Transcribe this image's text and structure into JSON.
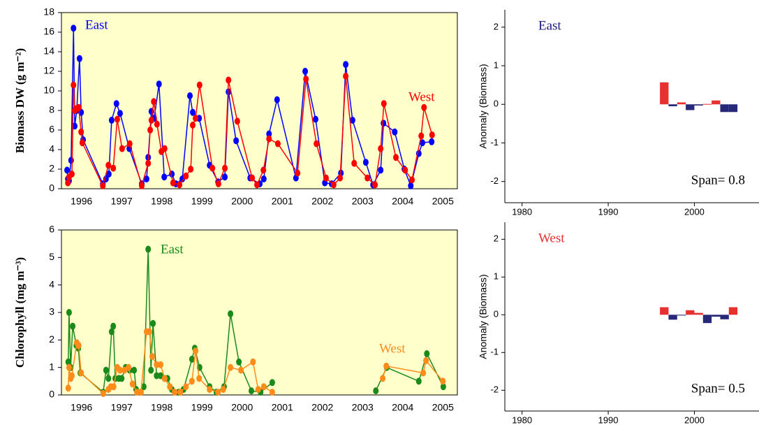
{
  "chart_data": [
    {
      "type": "line",
      "ylabel": "Biomass DW (g m⁻²)",
      "background": "#ffffcc",
      "xlim": [
        1996,
        2005.86
      ],
      "ylim": [
        0,
        18
      ],
      "yticks": [
        0,
        2,
        4,
        6,
        8,
        10,
        12,
        14,
        16,
        18
      ],
      "xticks": [
        {
          "value": 1996.5,
          "label": "1996"
        },
        {
          "value": 1997.5,
          "label": "1997"
        },
        {
          "value": 1998.5,
          "label": "1998"
        },
        {
          "value": 1999.5,
          "label": "1999"
        },
        {
          "value": 2000.5,
          "label": "2000"
        },
        {
          "value": 2001.5,
          "label": "2001"
        },
        {
          "value": 2002.5,
          "label": "2002"
        },
        {
          "value": 2003.5,
          "label": "2003"
        },
        {
          "value": 2004.5,
          "label": "2004"
        },
        {
          "value": 2005.5,
          "label": "2005"
        }
      ],
      "series": [
        {
          "name": "East",
          "color": "#0000ff",
          "x": [
            1996.14,
            1996.16,
            1996.19,
            1996.24,
            1996.3,
            1996.33,
            1996.38,
            1996.45,
            1996.49,
            1996.54,
            1997.03,
            1997.11,
            1997.18,
            1997.25,
            1997.37,
            1997.46,
            1997.69,
            1998.0,
            1998.12,
            1998.16,
            1998.24,
            1998.31,
            1998.43,
            1998.56,
            1998.75,
            1998.85,
            1999.01,
            1999.2,
            1999.27,
            1999.43,
            1999.69,
            1999.9,
            2000.07,
            2000.16,
            2000.35,
            2000.7,
            2000.94,
            2001.04,
            2001.17,
            2001.37,
            2001.84,
            2002.07,
            2002.33,
            2002.56,
            2002.73,
            2002.96,
            2003.08,
            2003.25,
            2003.58,
            2003.76,
            2003.95,
            2004.02,
            2004.3,
            2004.54,
            2004.7,
            2004.9,
            2004.99,
            2005.22
          ],
          "values": [
            1.9,
            1.0,
            0.8,
            2.9,
            16.4,
            6.4,
            8.0,
            13.3,
            7.8,
            5.0,
            0.5,
            1.0,
            1.5,
            7.0,
            8.7,
            7.7,
            4.1,
            0.5,
            1.0,
            3.2,
            7.9,
            7.2,
            10.7,
            1.2,
            1.5,
            0.5,
            1.0,
            9.5,
            7.8,
            7.2,
            2.4,
            0.7,
            1.2,
            9.9,
            4.9,
            1.1,
            0.5,
            1.0,
            5.6,
            9.1,
            1.1,
            12.0,
            7.1,
            0.6,
            0.5,
            1.6,
            12.7,
            7.0,
            2.7,
            0.4,
            1.9,
            6.7,
            5.8,
            2.0,
            0.3,
            3.6,
            4.7,
            4.8
          ]
        },
        {
          "name": "West",
          "color": "#ff0000",
          "x": [
            1996.16,
            1996.19,
            1996.26,
            1996.3,
            1996.33,
            1996.38,
            1996.43,
            1996.49,
            1996.52,
            1997.03,
            1997.17,
            1997.29,
            1997.39,
            1997.51,
            1997.7,
            1998.0,
            1998.16,
            1998.21,
            1998.24,
            1998.3,
            1998.38,
            1998.49,
            1998.57,
            1998.78,
            1998.94,
            1999.1,
            1999.22,
            1999.27,
            1999.34,
            1999.44,
            1999.76,
            1999.91,
            2000.07,
            2000.16,
            2000.38,
            2000.75,
            2000.87,
            2001.03,
            2001.17,
            2001.39,
            2001.88,
            2002.09,
            2002.35,
            2002.59,
            2002.78,
            2002.94,
            2003.08,
            2003.29,
            2003.62,
            2003.81,
            2003.95,
            2004.03,
            2004.33,
            2004.56,
            2004.73,
            2004.96,
            2005.03,
            2005.23
          ],
          "values": [
            0.6,
            1.2,
            1.5,
            10.6,
            8.0,
            8.2,
            8.3,
            5.8,
            4.7,
            0.3,
            2.4,
            2.1,
            7.1,
            4.1,
            4.6,
            0.3,
            2.6,
            6.0,
            7.0,
            8.9,
            6.6,
            3.8,
            4.1,
            0.6,
            0.4,
            1.3,
            2.0,
            6.5,
            7.2,
            10.6,
            2.1,
            0.5,
            2.1,
            11.1,
            6.9,
            1.1,
            0.4,
            1.9,
            5.1,
            4.6,
            1.6,
            11.2,
            4.6,
            1.1,
            0.4,
            1.1,
            11.5,
            2.6,
            1.1,
            0.4,
            4.1,
            8.7,
            3.2,
            1.9,
            0.9,
            5.4,
            8.3,
            5.5
          ]
        }
      ]
    },
    {
      "type": "line",
      "ylabel": "Chlorophyll (mg m⁻³)",
      "background": "#ffffcc",
      "xlim": [
        1996,
        2005.86
      ],
      "ylim": [
        0,
        6
      ],
      "yticks": [
        0,
        1,
        2,
        3,
        4,
        5,
        6
      ],
      "xticks": [
        {
          "value": 1996.5,
          "label": "1996"
        },
        {
          "value": 1997.5,
          "label": "1997"
        },
        {
          "value": 1998.5,
          "label": "1998"
        },
        {
          "value": 1999.5,
          "label": "1999"
        },
        {
          "value": 2000.5,
          "label": "2000"
        },
        {
          "value": 2001.5,
          "label": "2001"
        },
        {
          "value": 2002.5,
          "label": "2002"
        },
        {
          "value": 2003.5,
          "label": "2003"
        },
        {
          "value": 2004.5,
          "label": "2004"
        },
        {
          "value": 2005.5,
          "label": "2005"
        }
      ],
      "series": [
        {
          "name": "East",
          "color": "#1a8a1a",
          "x": [
            1996.17,
            1996.19,
            1996.23,
            1996.28,
            1996.37,
            1996.42,
            1996.47,
            1997.04,
            1997.11,
            1997.17,
            1997.25,
            1997.29,
            1997.34,
            1997.43,
            1997.5,
            1997.6,
            1997.7,
            1997.81,
            1997.86,
            1997.98,
            1998.05,
            1998.16,
            1998.23,
            1998.28,
            1998.37,
            1998.47,
            1998.57,
            1998.64,
            1998.75,
            1998.92,
            1999.04,
            1999.25,
            1999.32,
            1999.44,
            1999.69,
            1999.86,
            2000.05,
            2000.21,
            2000.42,
            2000.73,
            2000.96,
            2001.25,
            null,
            2003.83,
            2004.1,
            2004.9,
            2005.1,
            2005.51
          ],
          "values": [
            1.2,
            3.0,
            1.0,
            2.5,
            1.8,
            1.7,
            0.8,
            0.1,
            0.9,
            0.6,
            2.3,
            2.5,
            0.6,
            0.6,
            0.6,
            1.0,
            0.9,
            0.9,
            0.2,
            0.1,
            0.3,
            5.3,
            0.9,
            2.6,
            0.7,
            0.7,
            0.6,
            0.6,
            0.2,
            0.1,
            0.2,
            1.3,
            1.7,
            1.0,
            0.3,
            0.1,
            0.3,
            2.95,
            1.2,
            0.15,
            0.1,
            0.45,
            null,
            0.15,
            1.0,
            0.5,
            1.5,
            0.3
          ]
        },
        {
          "name": "West",
          "color": "#ff8c1a",
          "x": [
            1996.17,
            1996.19,
            1996.23,
            1996.26,
            1996.38,
            1996.43,
            1996.49,
            1997.04,
            1997.17,
            1997.23,
            1997.3,
            1997.39,
            1997.46,
            1997.57,
            1997.67,
            1997.77,
            1997.88,
            1997.98,
            1998.12,
            1998.19,
            1998.26,
            1998.37,
            1998.47,
            1998.57,
            1998.7,
            1998.82,
            1998.96,
            1999.1,
            1999.25,
            1999.34,
            1999.43,
            1999.69,
            1999.9,
            2000.03,
            2000.21,
            2000.47,
            2000.77,
            2000.9,
            2001.04,
            2001.25,
            null,
            2004.0,
            2004.09,
            2005.01,
            2005.08,
            2005.5
          ],
          "values": [
            0.25,
            1.0,
            0.6,
            0.7,
            1.9,
            1.8,
            0.8,
            0.05,
            0.2,
            0.3,
            0.3,
            1.0,
            0.9,
            0.9,
            1.0,
            0.4,
            0.1,
            0.1,
            2.3,
            2.3,
            1.4,
            1.1,
            1.1,
            0.6,
            0.3,
            0.1,
            0.1,
            0.3,
            0.5,
            1.6,
            0.6,
            0.2,
            0.1,
            0.2,
            1.0,
            0.9,
            1.2,
            0.2,
            0.3,
            0.1,
            null,
            0.6,
            1.05,
            0.8,
            1.25,
            0.5
          ]
        }
      ]
    },
    {
      "type": "bar",
      "ylabel": "Anomaly (Biomass)",
      "label": "East",
      "label_color": "#1a1a80",
      "annotation": "Span= 0.8",
      "positive_color": "#e83030",
      "negative_color": "#282878",
      "xlim": [
        1978,
        2007.5
      ],
      "ylim": [
        -2.55,
        2.45
      ],
      "xticks": [
        1980,
        1990,
        2000
      ],
      "yticks": [
        -2,
        -1,
        0,
        1,
        2
      ],
      "x": [
        1996,
        1997,
        1998,
        1999,
        2000,
        2001,
        2002,
        2003,
        2004
      ],
      "values": [
        0.57,
        -0.05,
        0.05,
        -0.15,
        -0.03,
        0.01,
        0.1,
        -0.2,
        -0.2
      ]
    },
    {
      "type": "bar",
      "ylabel": "Anomaly (Biomass)",
      "label": "West",
      "label_color": "#e83030",
      "annotation": "Span= 0.5",
      "positive_color": "#e83030",
      "negative_color": "#282878",
      "xlim": [
        1978,
        2007.5
      ],
      "ylim": [
        -2.55,
        2.45
      ],
      "xticks": [
        1980,
        1990,
        2000
      ],
      "yticks": [
        -2,
        -1,
        0,
        1,
        2
      ],
      "x": [
        1996,
        1997,
        1998,
        1999,
        2000,
        2001,
        2002,
        2003,
        2004
      ],
      "values": [
        0.2,
        -0.13,
        -0.02,
        0.12,
        0.05,
        -0.22,
        -0.05,
        -0.12,
        0.2
      ]
    }
  ]
}
